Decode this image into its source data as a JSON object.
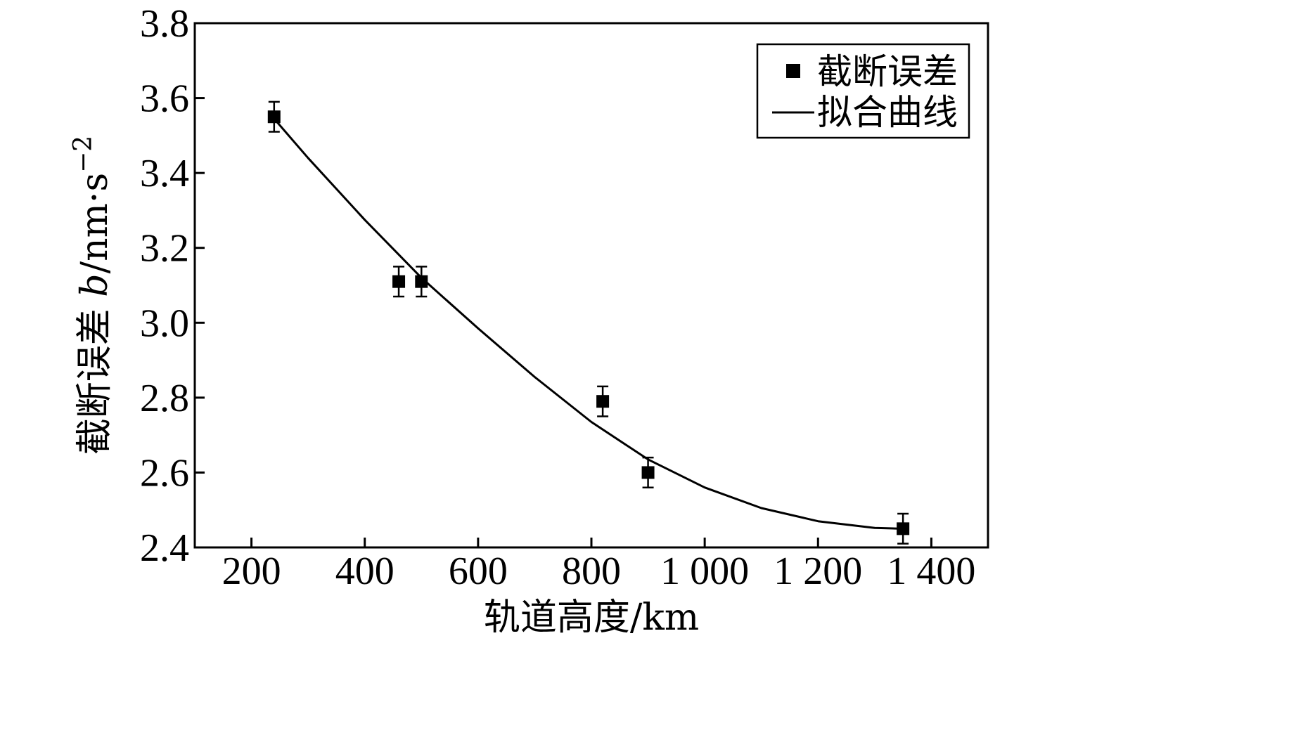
{
  "chart_data": {
    "type": "scatter",
    "title": "",
    "xlabel": "轨道高度/km",
    "ylabel": {
      "prefix": "截断误差 ",
      "symbol": "b",
      "unit": "/nm·s",
      "exponent": "−2"
    },
    "xlim": [
      100,
      1500
    ],
    "ylim": [
      2.4,
      3.8
    ],
    "xticks": [
      200,
      400,
      600,
      800,
      1000,
      1200,
      1400
    ],
    "xtick_labels": [
      "200",
      "400",
      "600",
      "800",
      "1 000",
      "1 200",
      "1 400"
    ],
    "yticks": [
      2.4,
      2.6,
      2.8,
      3.0,
      3.2,
      3.4,
      3.6,
      3.8
    ],
    "ytick_labels": [
      "2.4",
      "2.6",
      "2.8",
      "3.0",
      "3.2",
      "3.4",
      "3.6",
      "3.8"
    ],
    "grid": false,
    "legend_position": "top-right",
    "series": [
      {
        "name": "截断误差",
        "kind": "markers-with-errorbars",
        "marker": "square",
        "color": "#000000",
        "x": [
          240,
          460,
          500,
          820,
          900,
          1350
        ],
        "y": [
          3.55,
          3.11,
          3.11,
          2.79,
          2.6,
          2.45
        ],
        "yerr": [
          0.04,
          0.04,
          0.04,
          0.04,
          0.04,
          0.04
        ]
      },
      {
        "name": "拟合曲线",
        "kind": "line",
        "color": "#000000",
        "x": [
          240,
          300,
          400,
          500,
          600,
          700,
          800,
          900,
          1000,
          1100,
          1200,
          1300,
          1350
        ],
        "y": [
          3.545,
          3.44,
          3.275,
          3.12,
          2.985,
          2.855,
          2.735,
          2.635,
          2.56,
          2.505,
          2.47,
          2.452,
          2.45
        ]
      }
    ]
  }
}
